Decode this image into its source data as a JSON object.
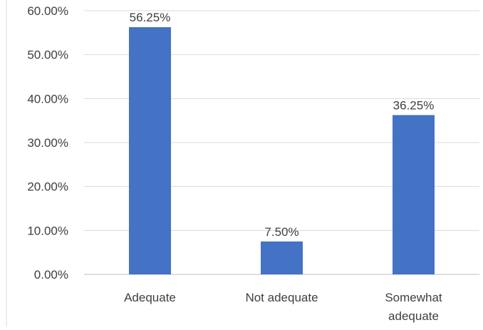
{
  "chart_data": {
    "type": "bar",
    "categories": [
      "Adequate",
      "Not adequate",
      "Somewhat adequate"
    ],
    "category_lines": [
      [
        "Adequate"
      ],
      [
        "Not adequate"
      ],
      [
        "Somewhat",
        "adequate"
      ]
    ],
    "values": [
      56.25,
      7.5,
      36.25
    ],
    "data_labels": [
      "56.25%",
      "7.50%",
      "36.25%"
    ],
    "ylim": [
      0,
      60
    ],
    "y_ticks": [
      0,
      10,
      20,
      30,
      40,
      50,
      60
    ],
    "y_tick_labels": [
      "0.00%",
      "10.00%",
      "20.00%",
      "30.00%",
      "40.00%",
      "50.00%",
      "60.00%"
    ],
    "grid": true,
    "legend": "none",
    "bar_color": "#4472C4",
    "grid_color": "#D9D9D9",
    "axis_color": "#BFBFBF",
    "text_color": "#404040"
  }
}
